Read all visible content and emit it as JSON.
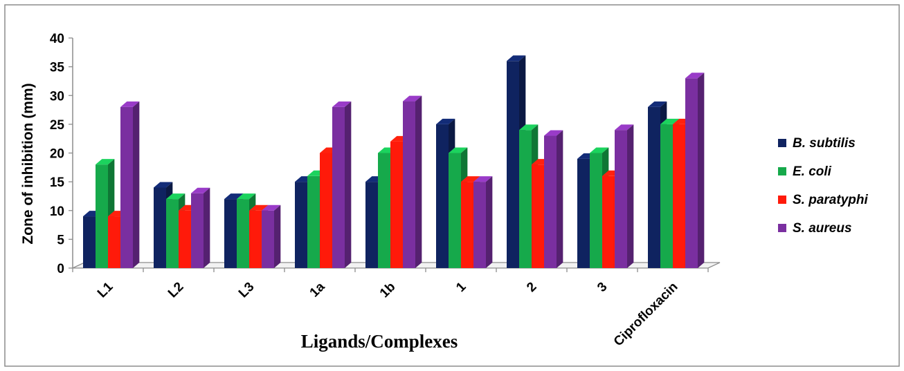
{
  "chart_data": {
    "type": "bar",
    "title": "",
    "xlabel": "Ligands/Complexes",
    "ylabel": "Zone of inhibition (mm)",
    "ylim": [
      0,
      40
    ],
    "yticks": [
      0,
      5,
      10,
      15,
      20,
      25,
      30,
      35,
      40
    ],
    "categories": [
      "L1",
      "L2",
      "L3",
      "1a",
      "1b",
      "1",
      "2",
      "3",
      "Ciprofloxacin"
    ],
    "series": [
      {
        "name": "B. subtilis",
        "color": "#0f2360",
        "values": [
          9,
          14,
          12,
          15,
          15,
          25,
          36,
          19,
          28
        ]
      },
      {
        "name": "E. coli",
        "color": "#16a94b",
        "values": [
          18,
          12,
          12,
          16,
          20,
          20,
          24,
          20,
          25
        ]
      },
      {
        "name": "S. paratyphi",
        "color": "#ff1a0a",
        "values": [
          9,
          10,
          10,
          20,
          22,
          15,
          18,
          16,
          25
        ]
      },
      {
        "name": "S. aureus",
        "color": "#7a2fa0",
        "values": [
          28,
          13,
          10,
          28,
          29,
          15,
          23,
          24,
          33
        ]
      }
    ],
    "grid": false,
    "legend_position": "right",
    "style": "3d-clustered-column"
  }
}
